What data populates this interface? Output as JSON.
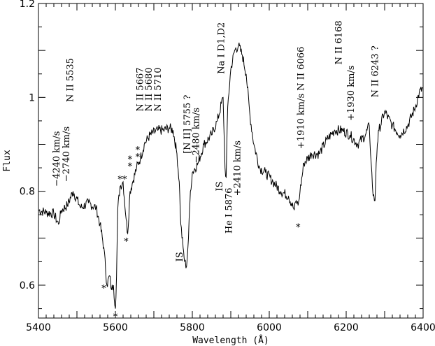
{
  "chart_data": {
    "type": "line",
    "xlabel": "Wavelength (Å)",
    "ylabel": "Flux",
    "xlim": [
      5400,
      6400
    ],
    "ylim": [
      0.53,
      1.2
    ],
    "xticks": [
      5400,
      5600,
      5800,
      6000,
      6200,
      6400
    ],
    "xtick_labels": [
      "5400",
      "5600",
      "5800",
      "6000",
      "6200",
      "6400"
    ],
    "yticks": [
      0.6,
      0.8,
      1.0,
      1.2
    ],
    "ytick_labels": [
      "0.6",
      "0.8",
      "1",
      "1.2"
    ],
    "grid": false,
    "series": [
      {
        "x": [
          5400,
          5420,
          5440,
          5452,
          5460,
          5475,
          5490,
          5510,
          5530,
          5550,
          5560,
          5570,
          5578,
          5585,
          5590,
          5595,
          5600,
          5603,
          5606,
          5612,
          5620,
          5628,
          5632,
          5638,
          5645,
          5655,
          5665,
          5675,
          5690,
          5710,
          5725,
          5740,
          5750,
          5760,
          5766,
          5770,
          5776,
          5780,
          5785,
          5790,
          5795,
          5800,
          5815,
          5830,
          5850,
          5865,
          5880,
          5885,
          5888,
          5892,
          5900,
          5910,
          5920,
          5930,
          5940,
          5950,
          5960,
          5975,
          5990,
          6010,
          6030,
          6050,
          6065,
          6070,
          6075,
          6080,
          6090,
          6110,
          6130,
          6150,
          6170,
          6190,
          6210,
          6230,
          6250,
          6260,
          6265,
          6270,
          6275,
          6278,
          6281,
          6285,
          6300,
          6320,
          6340,
          6360,
          6380,
          6390,
          6400
        ],
        "y": [
          0.76,
          0.755,
          0.752,
          0.73,
          0.76,
          0.77,
          0.8,
          0.765,
          0.775,
          0.765,
          0.73,
          0.68,
          0.6,
          0.62,
          0.59,
          0.6,
          0.55,
          0.62,
          0.76,
          0.81,
          0.82,
          0.74,
          0.71,
          0.8,
          0.82,
          0.85,
          0.87,
          0.9,
          0.92,
          0.93,
          0.93,
          0.935,
          0.93,
          0.88,
          0.82,
          0.73,
          0.68,
          0.65,
          0.64,
          0.7,
          0.8,
          0.84,
          0.86,
          0.9,
          0.92,
          0.95,
          1.0,
          0.85,
          0.83,
          0.98,
          1.06,
          1.1,
          1.11,
          1.09,
          1.05,
          0.96,
          0.9,
          0.85,
          0.84,
          0.82,
          0.8,
          0.79,
          0.76,
          0.78,
          0.77,
          0.8,
          0.86,
          0.88,
          0.88,
          0.91,
          0.93,
          0.93,
          0.92,
          0.9,
          0.92,
          0.94,
          0.86,
          0.79,
          0.78,
          0.86,
          0.9,
          0.93,
          0.97,
          0.94,
          0.92,
          0.94,
          0.98,
          1.01,
          1.02
        ]
      }
    ],
    "annotations": [
      {
        "text": "N II 5535",
        "x": 5490,
        "y": 0.99,
        "rotate": -90
      },
      {
        "text": "−4240 km/s",
        "x": 5455,
        "y": 0.81,
        "rotate": -90
      },
      {
        "text": "−2740 km/s",
        "x": 5480,
        "y": 0.82,
        "rotate": -90
      },
      {
        "text": "N II 5667",
        "x": 5672,
        "y": 0.97,
        "rotate": -90
      },
      {
        "text": "N II 5680",
        "x": 5695,
        "y": 0.97,
        "rotate": -90
      },
      {
        "text": "N II 5710",
        "x": 5718,
        "y": 0.97,
        "rotate": -90
      },
      {
        "text": "[N II] 5755 ?",
        "x": 5795,
        "y": 0.88,
        "rotate": -90
      },
      {
        "text": "−2480 km/s",
        "x": 5817,
        "y": 0.86,
        "rotate": -90
      },
      {
        "text": "IS",
        "x": 5775,
        "y": 0.65,
        "rotate": -90
      },
      {
        "text": "IS",
        "x": 5878,
        "y": 0.8,
        "rotate": -90
      },
      {
        "text": "Na I D1,D2",
        "x": 5883,
        "y": 1.05,
        "rotate": -90
      },
      {
        "text": "He I 5876",
        "x": 5903,
        "y": 0.71,
        "rotate": -90
      },
      {
        "text": "+2410 km/s",
        "x": 5925,
        "y": 0.79,
        "rotate": -90
      },
      {
        "text": "+1910 km/s N II 6066",
        "x": 6090,
        "y": 0.89,
        "rotate": -90
      },
      {
        "text": "+1930 km/s",
        "x": 6220,
        "y": 0.95,
        "rotate": -90
      },
      {
        "text": "N II 6168",
        "x": 6188,
        "y": 1.07,
        "rotate": -90
      },
      {
        "text": "N II 6243 ?",
        "x": 6283,
        "y": 1.0,
        "rotate": -90
      }
    ],
    "markers": [
      {
        "text": "*",
        "x": 5570,
        "y": 0.6
      },
      {
        "text": "*",
        "x": 5600,
        "y": 0.54
      },
      {
        "text": "**",
        "x": 5618,
        "y": 0.832
      },
      {
        "text": "*",
        "x": 5628,
        "y": 0.7
      },
      {
        "text": "*",
        "x": 5638,
        "y": 0.86
      },
      {
        "text": "*",
        "x": 5638,
        "y": 0.875
      },
      {
        "text": "*",
        "x": 5658,
        "y": 0.88
      },
      {
        "text": "*",
        "x": 5658,
        "y": 0.895
      },
      {
        "text": "*",
        "x": 6075,
        "y": 0.73
      }
    ]
  }
}
